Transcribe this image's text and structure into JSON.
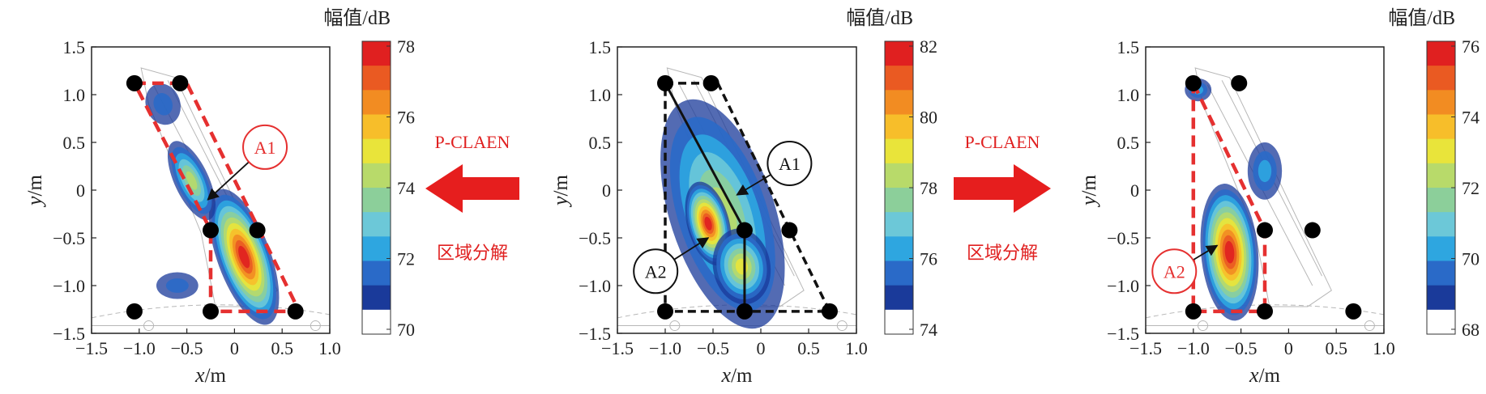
{
  "chart_data": [
    {
      "type": "heatmap",
      "xlabel": "x",
      "xunit": "/m",
      "ylabel": "y",
      "yunit": "/m",
      "xlim": [
        -1.5,
        1.0
      ],
      "ylim": [
        -1.5,
        1.5
      ],
      "xticks": [
        "−1.5",
        "−1.0",
        "−0.5",
        "0",
        "0.5",
        "1.0"
      ],
      "yticks": [
        "1.5",
        "1.0",
        "0.5",
        "0",
        "−0.5",
        "−1.0",
        "−1.5"
      ],
      "colorbar": {
        "title": "幅值/dB",
        "min": 70,
        "max": 78,
        "ticks": [
          "78",
          "76",
          "74",
          "72",
          "70"
        ]
      },
      "points": [
        [
          -1.05,
          1.12
        ],
        [
          -0.57,
          1.12
        ],
        [
          -0.25,
          -0.42
        ],
        [
          0.24,
          -0.42
        ],
        [
          -1.05,
          -1.27
        ],
        [
          -0.25,
          -1.27
        ],
        [
          0.64,
          -1.27
        ]
      ],
      "region": {
        "label": "A1",
        "color": "#e53030",
        "polygon": [
          [
            -1.05,
            1.12
          ],
          [
            -0.5,
            1.12
          ],
          [
            0.68,
            -1.27
          ],
          [
            -0.25,
            -1.27
          ],
          [
            -0.25,
            -0.42
          ]
        ]
      },
      "blobs": [
        {
          "cx": 0.1,
          "cy": -0.7,
          "rx": 0.28,
          "ry": 0.75,
          "rot": -20,
          "peak": 1.0
        },
        {
          "cx": -0.45,
          "cy": 0.1,
          "rx": 0.18,
          "ry": 0.45,
          "rot": -25,
          "peak": 0.55
        },
        {
          "cx": -0.75,
          "cy": 0.9,
          "rx": 0.18,
          "ry": 0.22,
          "rot": -20,
          "peak": 0.2
        },
        {
          "cx": -0.6,
          "cy": -1.0,
          "rx": 0.22,
          "ry": 0.14,
          "rot": 0,
          "peak": 0.22
        }
      ],
      "callouts": [
        {
          "label": "A1",
          "color": "#e53030",
          "at": [
            0.32,
            0.45
          ],
          "arrow_to": [
            -0.28,
            -0.1
          ]
        }
      ]
    },
    {
      "type": "heatmap",
      "xlabel": "x",
      "xunit": "/m",
      "ylabel": "y",
      "yunit": "/m",
      "xlim": [
        -1.5,
        1.0
      ],
      "ylim": [
        -1.5,
        1.5
      ],
      "xticks": [
        "−1.5",
        "−1.0",
        "−0.5",
        "0",
        "0.5",
        "1.0"
      ],
      "yticks": [
        "1.5",
        "1.0",
        "0.5",
        "0",
        "−0.5",
        "−1.0",
        "−1.5"
      ],
      "colorbar": {
        "title": "幅值/dB",
        "min": 74,
        "max": 82,
        "ticks": [
          "82",
          "80",
          "78",
          "76",
          "74"
        ]
      },
      "points": [
        [
          -1.0,
          1.12
        ],
        [
          -0.52,
          1.12
        ],
        [
          -0.17,
          -0.42
        ],
        [
          0.3,
          -0.42
        ],
        [
          -1.0,
          -1.27
        ],
        [
          -0.17,
          -1.27
        ],
        [
          0.72,
          -1.27
        ]
      ],
      "region": {
        "label": "",
        "color": "#111111",
        "polygon": [
          [
            -1.0,
            1.12
          ],
          [
            -0.45,
            1.12
          ],
          [
            0.72,
            -1.27
          ],
          [
            -1.0,
            -1.27
          ]
        ]
      },
      "lines": [
        [
          [
            -1.0,
            1.12
          ],
          [
            -0.17,
            -0.42
          ]
        ],
        [
          [
            -0.17,
            -0.42
          ],
          [
            -0.17,
            -1.27
          ]
        ]
      ],
      "blobs": [
        {
          "cx": -0.4,
          "cy": -0.25,
          "rx": 0.55,
          "ry": 1.25,
          "rot": -18,
          "peak": 0.55
        },
        {
          "cx": -0.55,
          "cy": -0.35,
          "rx": 0.22,
          "ry": 0.45,
          "rot": -15,
          "peak": 1.0
        },
        {
          "cx": -0.2,
          "cy": -0.8,
          "rx": 0.3,
          "ry": 0.4,
          "rot": -10,
          "peak": 0.6
        }
      ],
      "callouts": [
        {
          "label": "A1",
          "color": "#111111",
          "at": [
            0.3,
            0.28
          ],
          "arrow_to": [
            -0.25,
            -0.05
          ]
        },
        {
          "label": "A2",
          "color": "#111111",
          "at": [
            -1.1,
            -0.85
          ],
          "arrow_to": [
            -0.55,
            -0.5
          ]
        }
      ]
    },
    {
      "type": "heatmap",
      "xlabel": "x",
      "xunit": "/m",
      "ylabel": "y",
      "yunit": "/m",
      "xlim": [
        -1.5,
        1.0
      ],
      "ylim": [
        -1.5,
        1.5
      ],
      "xticks": [
        "−1.5",
        "−1.0",
        "−0.5",
        "0",
        "0.5",
        "1.0"
      ],
      "yticks": [
        "1.5",
        "1.0",
        "0.5",
        "0",
        "−0.5",
        "−1.0",
        "−1.5"
      ],
      "colorbar": {
        "title": "幅值/dB",
        "min": 68,
        "max": 76,
        "ticks": [
          "76",
          "74",
          "72",
          "70",
          "68"
        ]
      },
      "points": [
        [
          -1.0,
          1.12
        ],
        [
          -0.52,
          1.12
        ],
        [
          -0.25,
          -0.42
        ],
        [
          0.25,
          -0.42
        ],
        [
          -1.0,
          -1.27
        ],
        [
          -0.25,
          -1.27
        ],
        [
          0.68,
          -1.27
        ]
      ],
      "region": {
        "label": "A2",
        "color": "#e53030",
        "polygon": [
          [
            -1.0,
            1.12
          ],
          [
            -0.25,
            -0.42
          ],
          [
            -0.25,
            -1.27
          ],
          [
            -1.0,
            -1.27
          ]
        ]
      },
      "blobs": [
        {
          "cx": -0.62,
          "cy": -0.65,
          "rx": 0.3,
          "ry": 0.72,
          "rot": -5,
          "peak": 1.0
        },
        {
          "cx": -0.25,
          "cy": 0.2,
          "rx": 0.18,
          "ry": 0.3,
          "rot": 0,
          "peak": 0.3
        },
        {
          "cx": -0.95,
          "cy": 1.05,
          "rx": 0.14,
          "ry": 0.12,
          "rot": 0,
          "peak": 0.3
        }
      ],
      "callouts": [
        {
          "label": "A2",
          "color": "#e53030",
          "at": [
            -1.2,
            -0.85
          ],
          "arrow_to": [
            -0.75,
            -0.58
          ]
        }
      ]
    }
  ],
  "arrows": [
    {
      "direction": "left",
      "method": "P-CLAEN",
      "caption": "区域分解"
    },
    {
      "direction": "right",
      "method": "P-CLAEN",
      "caption": "区域分解"
    }
  ],
  "colormap": [
    "#ffffff",
    "#1a3a9a",
    "#2a6ac8",
    "#2ea6e0",
    "#6cc8d8",
    "#8ccf9a",
    "#b8da6a",
    "#e9e43a",
    "#f7be2a",
    "#f28c22",
    "#ea5a22",
    "#e02020"
  ]
}
